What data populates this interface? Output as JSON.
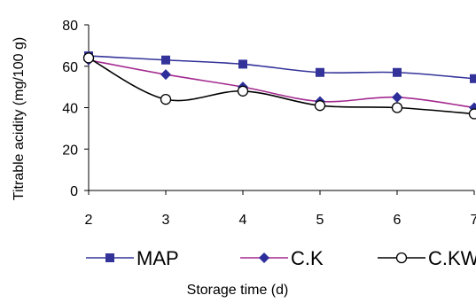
{
  "chart_data": {
    "type": "line",
    "title": "",
    "xlabel": "Storage time (d)",
    "ylabel": "Titrable acidity (mg/100 g)",
    "x": [
      2,
      3,
      4,
      5,
      6,
      7
    ],
    "xlim": [
      2,
      7
    ],
    "ylim": [
      0,
      80
    ],
    "yticks": [
      0,
      20,
      40,
      60,
      80
    ],
    "grid": false,
    "legend_position": "bottom",
    "series": [
      {
        "name": "MAP",
        "values": [
          65,
          63,
          61,
          57,
          57,
          54
        ],
        "color": "#33339A",
        "marker": "square"
      },
      {
        "name": "C.K",
        "values": [
          63,
          56,
          50,
          43,
          45,
          40
        ],
        "color": "#A3298F",
        "marker": "diamond-navy"
      },
      {
        "name": "C.KW",
        "values": [
          64,
          44,
          48,
          41,
          40,
          37
        ],
        "color": "#000000",
        "marker": "open-circle"
      }
    ]
  }
}
